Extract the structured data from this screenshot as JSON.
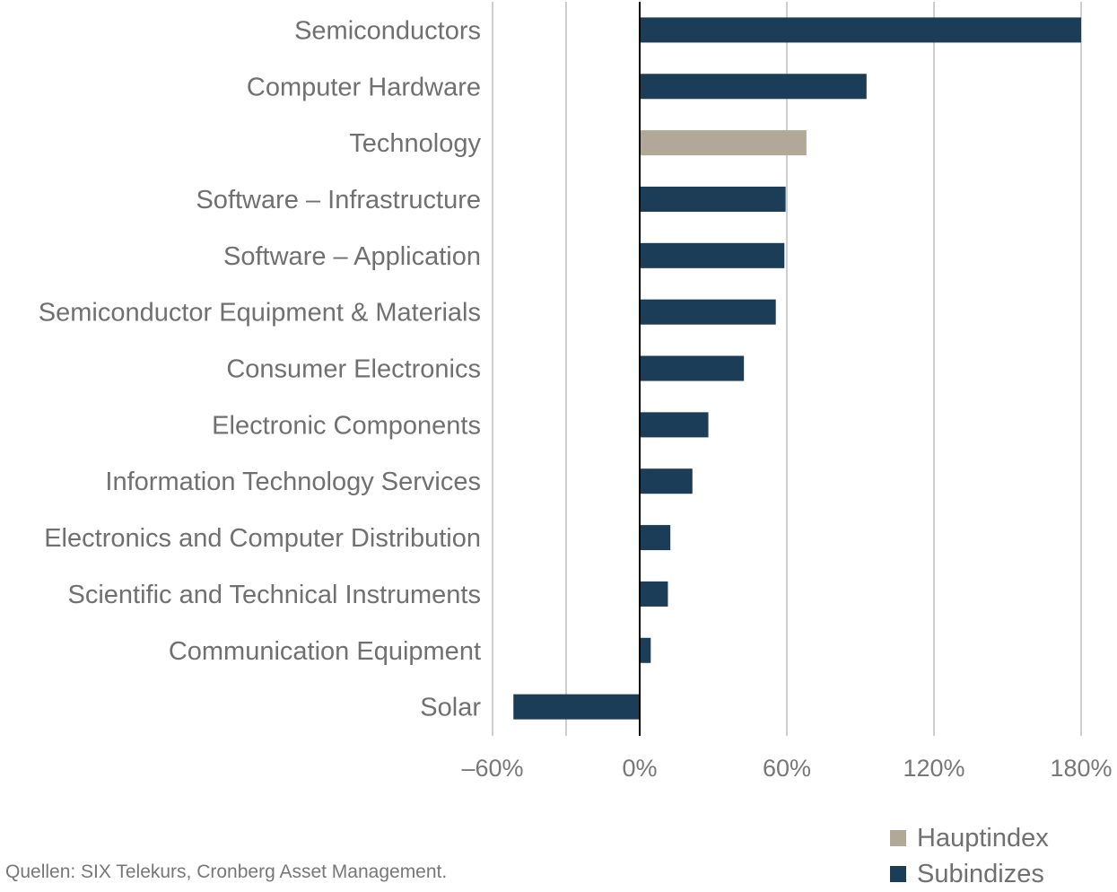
{
  "chart_data": {
    "type": "bar",
    "orientation": "horizontal",
    "categories": [
      "Semiconductors",
      "Computer Hardware",
      "Technology",
      "Software – Infrastructure",
      "Software – Application",
      "Semiconductor Equipment & Materials",
      "Consumer Electronics",
      "Electronic Components",
      "Information Technology Services",
      "Electronics and Computer Distribution",
      "Scientific and Technical Instruments",
      "Communication Equipment",
      "Solar"
    ],
    "values": [
      180,
      92.5,
      68,
      59.5,
      59,
      55.5,
      42.5,
      28,
      21.5,
      12.5,
      11.5,
      4.5,
      -51.5
    ],
    "series_of": [
      "Subindizes",
      "Subindizes",
      "Hauptindex",
      "Subindizes",
      "Subindizes",
      "Subindizes",
      "Subindizes",
      "Subindizes",
      "Subindizes",
      "Subindizes",
      "Subindizes",
      "Subindizes",
      "Subindizes"
    ],
    "xlim": [
      -60,
      180
    ],
    "xticks": [
      -60,
      0,
      60,
      120,
      180
    ],
    "xtick_labels": [
      "–60%",
      "0%",
      "60%",
      "120%",
      "180%"
    ],
    "gridlines": [
      -60,
      -30,
      60,
      120,
      180
    ],
    "legend": [
      {
        "name": "Hauptindex",
        "color": "#b2a897"
      },
      {
        "name": "Subindizes",
        "color": "#1b3d58"
      }
    ],
    "legend_position": "bottom-right",
    "title": "",
    "xlabel": "",
    "ylabel": ""
  },
  "source": "Quellen: SIX Telekurs, Cronberg Asset Management."
}
